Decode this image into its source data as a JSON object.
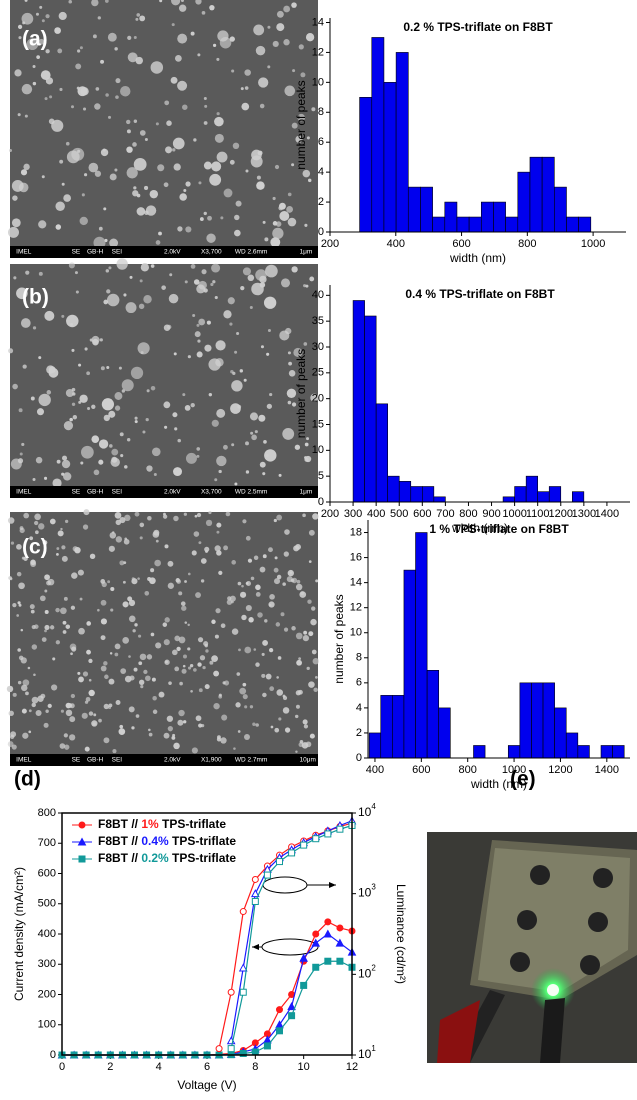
{
  "panels": [
    "(a)",
    "(b)",
    "(c)",
    "(d)",
    "(e)"
  ],
  "sem_images": [
    {
      "info": [
        "IMEL",
        "SE",
        "GB-H",
        "SEI",
        "2.0kV",
        "X3,700",
        "WD 2.6mm",
        "1μm"
      ]
    },
    {
      "info": [
        "IMEL",
        "SE",
        "GB-H",
        "SEI",
        "2.0kV",
        "X3,700",
        "WD 2.5mm",
        "1μm"
      ]
    },
    {
      "info": [
        "IMEL",
        "SE",
        "GB-H",
        "SEI",
        "2.0kV",
        "X1,900",
        "WD 2.7mm",
        "10μm"
      ]
    }
  ],
  "chart_data": [
    {
      "type": "histogram",
      "title": "0.2 % TPS-triflate on F8BT",
      "x_label": "width (nm)",
      "y_label": "number of peaks",
      "color": "#0000ee",
      "bins": [
        290,
        327,
        364,
        401,
        438,
        475,
        512,
        549,
        586,
        623,
        660,
        697,
        734,
        771,
        808,
        845,
        882,
        919,
        956,
        993
      ],
      "counts": [
        9,
        13,
        10,
        12,
        3,
        3,
        1,
        2,
        1,
        1,
        2,
        2,
        1,
        4,
        5,
        5,
        3,
        1,
        1
      ],
      "xlim": [
        200,
        1100
      ],
      "xticks": [
        200,
        400,
        600,
        800,
        1000
      ],
      "ylim": [
        0,
        14.3
      ],
      "yticks": [
        0,
        2,
        4,
        6,
        8,
        10,
        12,
        14
      ]
    },
    {
      "type": "histogram",
      "title": "0.4 % TPS-triflate on F8BT",
      "x_label": "width (nm)",
      "y_label": "number of peaks",
      "color": "#0000ee",
      "bins": [
        300,
        350,
        400,
        450,
        500,
        550,
        600,
        650,
        700,
        750,
        800,
        850,
        900,
        950,
        1000,
        1050,
        1100,
        1150,
        1200,
        1250,
        1300
      ],
      "counts": [
        39,
        36,
        19,
        5,
        4,
        3,
        3,
        1,
        0,
        0,
        0,
        0,
        0,
        1,
        3,
        5,
        2,
        3,
        0,
        2
      ],
      "xlim": [
        200,
        1500
      ],
      "xticks": [
        200,
        300,
        400,
        500,
        600,
        700,
        800,
        900,
        1000,
        1100,
        1200,
        1300,
        1400
      ],
      "ylim": [
        0,
        42
      ],
      "yticks": [
        0,
        5,
        10,
        15,
        20,
        25,
        30,
        35,
        40
      ]
    },
    {
      "type": "histogram",
      "title": "1 % TPS-triflate on F8BT",
      "x_label": "width (nm)",
      "y_label": "number of peaks",
      "color": "#0000ee",
      "bins": [
        375,
        425,
        475,
        525,
        575,
        625,
        675,
        725,
        775,
        825,
        875,
        925,
        975,
        1025,
        1075,
        1125,
        1175,
        1225,
        1275,
        1325,
        1375,
        1425,
        1475
      ],
      "counts": [
        2,
        5,
        5,
        15,
        18,
        7,
        4,
        0,
        0,
        1,
        0,
        0,
        1,
        6,
        6,
        6,
        4,
        2,
        1,
        0,
        1,
        1
      ],
      "xlim": [
        370,
        1500
      ],
      "xticks": [
        400,
        600,
        800,
        1000,
        1200,
        1400
      ],
      "ylim": [
        0,
        19
      ],
      "yticks": [
        0,
        2,
        4,
        6,
        8,
        10,
        12,
        14,
        16,
        18
      ]
    },
    {
      "type": "line",
      "x_label": "Voltage (V)",
      "y_label": "Current density (mA/cm²)",
      "y2_label": "Luminance (cd/m²)",
      "x": [
        0,
        0.5,
        1,
        1.5,
        2,
        2.5,
        3,
        3.5,
        4,
        4.5,
        5,
        5.5,
        6,
        6.5,
        7,
        7.5,
        8,
        8.5,
        9,
        9.5,
        10,
        10.5,
        11,
        11.5,
        12
      ],
      "xlim": [
        0,
        12
      ],
      "xticks": [
        0,
        2,
        4,
        6,
        8,
        10,
        12
      ],
      "ylim": [
        0,
        800
      ],
      "yticks": [
        0,
        100,
        200,
        300,
        400,
        500,
        600,
        700,
        800
      ],
      "y2lim": [
        10,
        10000
      ],
      "y2_log": true,
      "y2ticks": [
        {
          "value": 10,
          "label": "10",
          "exponent": "1"
        },
        {
          "value": 100,
          "label": "10",
          "exponent": "2"
        },
        {
          "value": 1000,
          "label": "10",
          "exponent": "3"
        },
        {
          "value": 10000,
          "label": "10",
          "exponent": "4"
        }
      ],
      "series": [
        {
          "name": "F8BT // 1% TPS-triflate",
          "highlight": "1%",
          "color": "#ff1a1a",
          "marker": "circle",
          "filled": true,
          "values": [
            0,
            0,
            0,
            0,
            0,
            0,
            0,
            0,
            0,
            0,
            0,
            0,
            0,
            2,
            5,
            15,
            40,
            70,
            150,
            200,
            310,
            400,
            440,
            420,
            410
          ]
        },
        {
          "name": "F8BT // 0.4% TPS-triflate",
          "highlight": "0.4%",
          "color": "#1a1aff",
          "marker": "triangle",
          "filled": true,
          "values": [
            0,
            0,
            0,
            0,
            0,
            0,
            0,
            0,
            0,
            0,
            0,
            0,
            0,
            0,
            2,
            10,
            20,
            50,
            100,
            160,
            320,
            370,
            400,
            370,
            340
          ]
        },
        {
          "name": "F8BT // 0.2% TPS-triflate",
          "highlight": "0.2%",
          "color": "#119999",
          "marker": "square",
          "filled": true,
          "values": [
            0,
            0,
            0,
            0,
            0,
            0,
            0,
            0,
            0,
            0,
            0,
            0,
            0,
            0,
            1,
            5,
            10,
            30,
            80,
            130,
            230,
            290,
            310,
            310,
            290
          ]
        },
        {
          "axis": "y2",
          "color": "#ff1a1a",
          "marker": "circle",
          "filled": false,
          "values": [
            null,
            null,
            null,
            null,
            null,
            null,
            null,
            null,
            null,
            null,
            null,
            null,
            null,
            12,
            60,
            600,
            1500,
            2200,
            3000,
            3800,
            4500,
            5300,
            6000,
            6800,
            7500
          ]
        },
        {
          "axis": "y2",
          "color": "#1a1aff",
          "marker": "triangle",
          "filled": false,
          "values": [
            null,
            null,
            null,
            null,
            null,
            null,
            null,
            null,
            null,
            null,
            null,
            null,
            null,
            null,
            15,
            120,
            1000,
            2000,
            2800,
            3500,
            4300,
            5100,
            6000,
            7000,
            8000
          ]
        },
        {
          "axis": "y2",
          "color": "#119999",
          "marker": "square",
          "filled": false,
          "values": [
            null,
            null,
            null,
            null,
            null,
            null,
            null,
            null,
            null,
            null,
            null,
            null,
            null,
            null,
            12,
            60,
            800,
            1700,
            2500,
            3200,
            4000,
            4800,
            5500,
            6300,
            7000
          ]
        }
      ]
    }
  ]
}
